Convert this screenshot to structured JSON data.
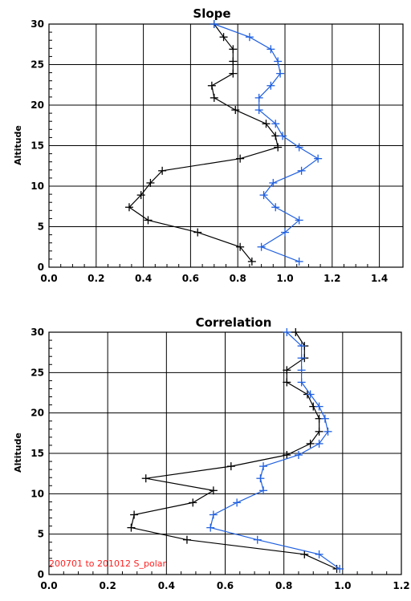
{
  "colors": {
    "black_series": "#000000",
    "blue_series": "#2060e0",
    "annotation": "#ff2020",
    "grid": "#000000"
  },
  "chart_data": [
    {
      "type": "line",
      "title": "Slope",
      "ylabel": "Altitude",
      "xlabel": "",
      "xlim": [
        0.0,
        1.5
      ],
      "ylim": [
        0,
        30
      ],
      "xticks": [
        "0.0",
        "0.2",
        "0.4",
        "0.6",
        "0.8",
        "1.0",
        "1.2",
        "1.4"
      ],
      "yticks": [
        "0",
        "5",
        "10",
        "15",
        "20",
        "25",
        "30"
      ],
      "grid": true,
      "series": [
        {
          "color": "#000000",
          "marker": "+",
          "points": [
            [
              0.86,
              0.7
            ],
            [
              0.81,
              2.5
            ],
            [
              0.63,
              4.3
            ],
            [
              0.42,
              5.8
            ],
            [
              0.34,
              7.4
            ],
            [
              0.39,
              8.9
            ],
            [
              0.43,
              10.4
            ],
            [
              0.48,
              11.9
            ],
            [
              0.81,
              13.4
            ],
            [
              0.97,
              14.8
            ],
            [
              0.96,
              16.2
            ],
            [
              0.92,
              17.7
            ],
            [
              0.79,
              19.4
            ],
            [
              0.7,
              20.9
            ],
            [
              0.69,
              22.4
            ],
            [
              0.78,
              23.9
            ],
            [
              0.78,
              25.4
            ],
            [
              0.78,
              26.9
            ],
            [
              0.74,
              28.4
            ],
            [
              0.7,
              30.0
            ]
          ]
        },
        {
          "color": "#2060e0",
          "marker": "+",
          "points": [
            [
              1.06,
              0.7
            ],
            [
              0.9,
              2.5
            ],
            [
              1.0,
              4.3
            ],
            [
              1.06,
              5.8
            ],
            [
              0.96,
              7.4
            ],
            [
              0.91,
              8.9
            ],
            [
              0.95,
              10.4
            ],
            [
              1.07,
              11.9
            ],
            [
              1.14,
              13.4
            ],
            [
              1.06,
              14.8
            ],
            [
              0.99,
              16.2
            ],
            [
              0.96,
              17.7
            ],
            [
              0.89,
              19.4
            ],
            [
              0.89,
              20.9
            ],
            [
              0.94,
              22.4
            ],
            [
              0.98,
              23.9
            ],
            [
              0.97,
              25.4
            ],
            [
              0.94,
              26.9
            ],
            [
              0.85,
              28.4
            ],
            [
              0.7,
              30.0
            ]
          ]
        }
      ]
    },
    {
      "type": "line",
      "title": "Correlation",
      "ylabel": "Altitude",
      "xlabel": "",
      "xlim": [
        0.0,
        1.2
      ],
      "ylim": [
        0,
        30
      ],
      "xticks": [
        "0.0",
        "0.2",
        "0.4",
        "0.6",
        "0.8",
        "1.0",
        "1.2"
      ],
      "yticks": [
        "0",
        "5",
        "10",
        "15",
        "20",
        "25",
        "30"
      ],
      "grid": true,
      "annotation": "200701 to 201012 S_polar",
      "series": [
        {
          "color": "#000000",
          "marker": "+",
          "points": [
            [
              0.98,
              0.7
            ],
            [
              0.87,
              2.5
            ],
            [
              0.47,
              4.3
            ],
            [
              0.28,
              5.8
            ],
            [
              0.29,
              7.4
            ],
            [
              0.49,
              8.9
            ],
            [
              0.56,
              10.4
            ],
            [
              0.33,
              11.9
            ],
            [
              0.62,
              13.4
            ],
            [
              0.81,
              14.8
            ],
            [
              0.89,
              16.2
            ],
            [
              0.92,
              17.7
            ],
            [
              0.92,
              19.3
            ],
            [
              0.9,
              20.8
            ],
            [
              0.88,
              22.3
            ],
            [
              0.81,
              23.8
            ],
            [
              0.81,
              25.3
            ],
            [
              0.87,
              26.8
            ],
            [
              0.87,
              28.3
            ],
            [
              0.84,
              30.0
            ]
          ]
        },
        {
          "color": "#2060e0",
          "marker": "+",
          "points": [
            [
              0.99,
              0.7
            ],
            [
              0.92,
              2.5
            ],
            [
              0.71,
              4.3
            ],
            [
              0.55,
              5.8
            ],
            [
              0.56,
              7.4
            ],
            [
              0.64,
              8.9
            ],
            [
              0.73,
              10.4
            ],
            [
              0.72,
              11.9
            ],
            [
              0.73,
              13.4
            ],
            [
              0.85,
              14.8
            ],
            [
              0.92,
              16.2
            ],
            [
              0.95,
              17.7
            ],
            [
              0.94,
              19.3
            ],
            [
              0.92,
              20.8
            ],
            [
              0.89,
              22.3
            ],
            [
              0.86,
              23.8
            ],
            [
              0.86,
              25.3
            ],
            [
              0.86,
              26.8
            ],
            [
              0.86,
              28.3
            ],
            [
              0.81,
              30.0
            ]
          ]
        }
      ]
    }
  ]
}
